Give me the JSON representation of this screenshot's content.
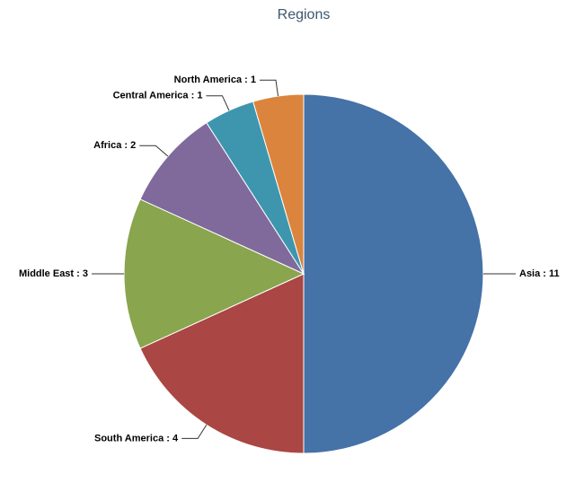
{
  "chart_data": {
    "type": "pie",
    "title": "Regions",
    "values": [
      11,
      4,
      3,
      2,
      1,
      1
    ],
    "value_labels": [
      "Asia : 11",
      "South America : 4",
      "Middle East : 3",
      "Africa : 2",
      "Central America : 1",
      "North America : 1"
    ],
    "colors": [
      "#4572a7",
      "#aa4643",
      "#89a54e",
      "#80699b",
      "#3d96ae",
      "#db843d"
    ]
  }
}
